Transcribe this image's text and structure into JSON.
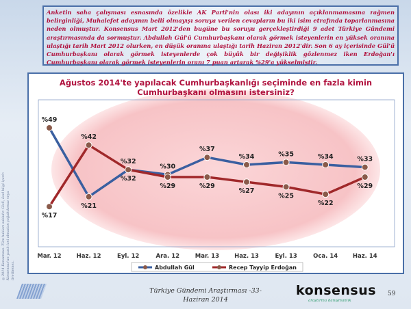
{
  "note": "Anketin saha çalışması esnasında özelikle AK Parti'nin olası iki adayının açıklanmamasına rağmen belirginliği, Muhalefet adayının belli olmayışı soruya verilen cevapların bu iki isim etrafında toparlanmasına neden olmuştur. Konsensus Mart 2012'den bugüne bu soruyu gerçekleştirdiği 9 adet Türkiye Gündemi araştırmasında da sormuştur. Abdullah Gül'ü Cumhurbaşkanı olarak görmek isteyenlerin en yüksek oranına ulaştığı tarih Mart 2012 olurken, en düşük oranına ulaştığı tarih Haziran 2012'dir. Son 6 ay içerisinde Gül'ü Cumhurbaşkanı olarak görmek isteyenlerde çok büyük bir değişiklik gözlenmez iken Erdoğan'ı Cumhurbaşkanı olarak görmek isteyenlerin oranı 7 puan artarak %29'a yükselmiştir.",
  "chart_data": {
    "type": "line",
    "title": "Ağustos 2014'te yapılacak Cumhurbaşkanlığı seçiminde en fazla kimin Cumhurbaşkanı olmasını istersiniz?",
    "categories": [
      "Mar. 12",
      "Haz. 12",
      "Eyl. 12",
      "Ara. 12",
      "Mar. 13",
      "Haz. 13",
      "Eyl. 13",
      "Oca. 14",
      "Haz. 14"
    ],
    "series": [
      {
        "name": "Abdullah Gül",
        "color": "#3a5fa0",
        "values": [
          49,
          21,
          32,
          30,
          37,
          34,
          35,
          34,
          33
        ]
      },
      {
        "name": "Recep Tayyip Erdoğan",
        "color": "#a0282a",
        "values": [
          17,
          42,
          32,
          29,
          29,
          27,
          25,
          22,
          29
        ]
      }
    ],
    "label_prefix": "%",
    "legend": "bottom"
  },
  "side_text": "©2014 Konsensus. Tüm hakları saklıdır. Gizli, özel bilgi içerir. Konsensus'un yazılı izni olmadan çoğaltılamaz veya üretilemez.",
  "footer": {
    "line1": "Türkiye Gündemi Araştırması -33-",
    "line2": "Haziran 2014"
  },
  "brand": {
    "name": "konsensus",
    "tagline": "araştırma danışmanlık"
  },
  "page_number": "59"
}
